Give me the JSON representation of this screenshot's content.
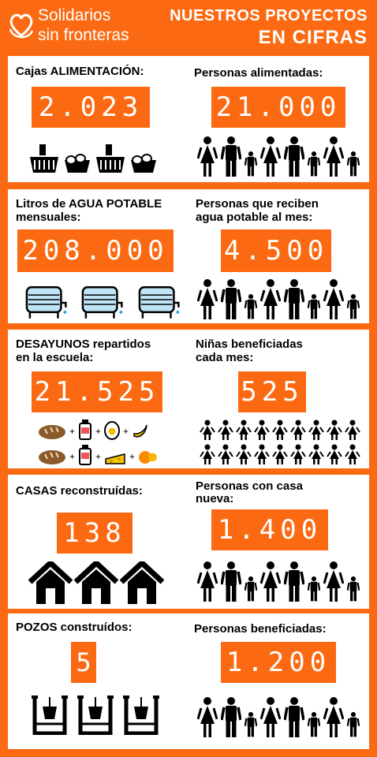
{
  "header": {
    "logo_line1": "Solidarios",
    "logo_line2": "sin fronteras",
    "title_line1": "NUESTROS PROYECTOS",
    "title_line2": "EN CIFRAS"
  },
  "sections": [
    {
      "left_label": "Cajas ALIMENTACIÓN:",
      "left_value": "2.023",
      "right_label": "Personas alimentadas:",
      "right_value": "21.000",
      "left_icon": "food-basket-icon",
      "right_icon": "family-icon"
    },
    {
      "left_label": "Litros de AGUA POTABLE",
      "left_label2": "mensuales:",
      "left_value": "208.000",
      "right_label": "Personas que reciben",
      "right_label2": "agua potable al mes:",
      "right_value": "4.500",
      "left_icon": "water-tank-icon",
      "right_icon": "family-icon"
    },
    {
      "left_label": "DESAYUNOS repartidos",
      "left_label2": "en la escuela:",
      "left_value": "21.525",
      "right_label": "Niñas beneficiadas",
      "right_label2": "cada mes:",
      "right_value": "525",
      "left_icon": "breakfast-icon",
      "right_icon": "children-icon"
    },
    {
      "left_label": "CASAS reconstruídas:",
      "left_value": "138",
      "right_label": "Personas con casa",
      "right_label2": "nueva:",
      "right_value": "1.400",
      "left_icon": "house-icon",
      "right_icon": "family-icon"
    },
    {
      "left_label": "POZOS construídos:",
      "left_value": "5",
      "right_label": "Personas beneficiadas:",
      "right_value": "1.200",
      "left_icon": "water-well-icon",
      "right_icon": "family-icon"
    }
  ],
  "colors": {
    "brand_orange": "#fb6a12",
    "white": "#ffffff",
    "black": "#000000"
  }
}
